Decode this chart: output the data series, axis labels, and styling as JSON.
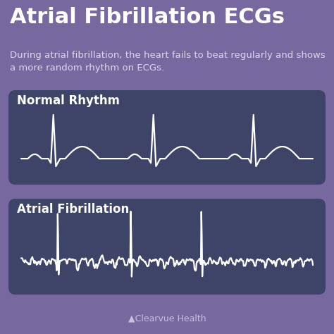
{
  "title": "Atrial Fibrillation ECGs",
  "subtitle": "During atrial fibrillation, the heart fails to beat regularly and shows\na more random rhythm on ECGs.",
  "panel1_label": "Normal Rhythm",
  "panel2_label": "Atrial Fibrillation",
  "footer": "▲Clearvue Health",
  "bg_color": "#7868A0",
  "panel_color": "#3D4468",
  "title_color": "#FFFFFF",
  "subtitle_color": "#DDD8EE",
  "label_color": "#FFFFFF",
  "ecg_color": "#FFFFFF",
  "footer_color": "#C8C0DD",
  "title_fontsize": 22,
  "subtitle_fontsize": 9.5,
  "label_fontsize": 12,
  "footer_fontsize": 9
}
